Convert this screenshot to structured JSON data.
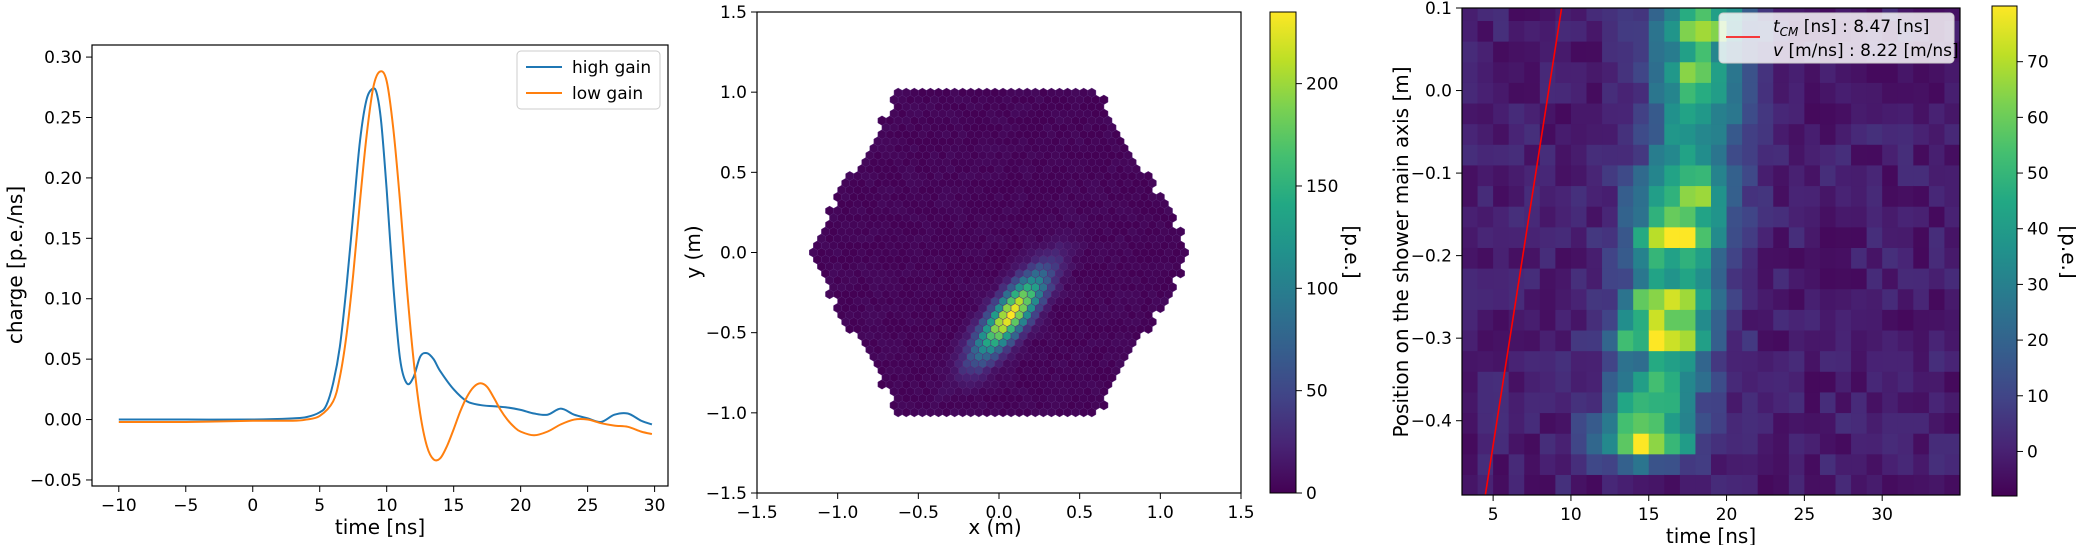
{
  "chart_data": [
    {
      "type": "line",
      "xlabel": "time [ns]",
      "ylabel": "charge [p.e./ns]",
      "xlim": [
        -12,
        31
      ],
      "ylim": [
        -0.055,
        0.31
      ],
      "xticks": [
        "−10",
        "−5",
        "0",
        "5",
        "10",
        "15",
        "20",
        "25",
        "30"
      ],
      "xtick_values": [
        -10,
        -5,
        0,
        5,
        10,
        15,
        20,
        25,
        30
      ],
      "yticks": [
        "−0.05",
        "0.00",
        "0.05",
        "0.10",
        "0.15",
        "0.20",
        "0.25",
        "0.30"
      ],
      "ytick_values": [
        -0.05,
        0,
        0.05,
        0.1,
        0.15,
        0.2,
        0.25,
        0.3
      ],
      "legend_position": "top-right",
      "grid": false,
      "series": [
        {
          "name": "high gain",
          "color": "#1f77b4",
          "x": [
            -10,
            -5,
            0,
            3,
            4,
            5,
            5.5,
            6,
            6.5,
            7,
            7.5,
            8,
            8.5,
            9,
            9.3,
            9.6,
            10,
            10.5,
            11,
            11.5,
            12,
            12.5,
            13,
            13.5,
            14,
            15,
            16,
            17,
            18,
            19,
            20,
            21,
            22,
            23,
            24,
            25,
            26,
            27,
            28,
            29,
            29.8
          ],
          "y": [
            0.0,
            0.0,
            0.0,
            0.001,
            0.002,
            0.006,
            0.012,
            0.03,
            0.06,
            0.11,
            0.17,
            0.23,
            0.265,
            0.274,
            0.268,
            0.245,
            0.19,
            0.11,
            0.05,
            0.03,
            0.035,
            0.052,
            0.055,
            0.05,
            0.04,
            0.025,
            0.015,
            0.012,
            0.011,
            0.01,
            0.008,
            0.005,
            0.004,
            0.009,
            0.004,
            0.001,
            -0.002,
            0.004,
            0.005,
            -0.001,
            -0.004
          ]
        },
        {
          "name": "low gain",
          "color": "#ff7f0e",
          "x": [
            -10,
            -5,
            0,
            3,
            4,
            5,
            6,
            6.5,
            7,
            7.5,
            8,
            8.5,
            9,
            9.5,
            10,
            10.5,
            11,
            11.5,
            12,
            12.5,
            13,
            13.5,
            14,
            14.5,
            15,
            15.5,
            16,
            16.5,
            17,
            17.5,
            18,
            18.5,
            19,
            19.5,
            20,
            21,
            22,
            23,
            24,
            25,
            26,
            27,
            28,
            29,
            29.8
          ],
          "y": [
            -0.002,
            -0.002,
            -0.001,
            -0.001,
            0.0,
            0.003,
            0.015,
            0.035,
            0.07,
            0.12,
            0.18,
            0.235,
            0.275,
            0.288,
            0.28,
            0.24,
            0.18,
            0.11,
            0.05,
            0.005,
            -0.022,
            -0.033,
            -0.032,
            -0.022,
            -0.008,
            0.007,
            0.019,
            0.027,
            0.03,
            0.027,
            0.018,
            0.008,
            0.0,
            -0.006,
            -0.01,
            -0.013,
            -0.01,
            -0.004,
            0.0,
            0.0,
            -0.003,
            -0.005,
            -0.006,
            -0.01,
            -0.012
          ]
        }
      ]
    },
    {
      "type": "heatmap",
      "xlabel": "x  (m)",
      "ylabel": "y  (m)",
      "xlim": [
        -1.5,
        1.5
      ],
      "ylim": [
        -1.5,
        1.5
      ],
      "xticks": [
        "−1.5",
        "−1.0",
        "−0.5",
        "0.0",
        "0.5",
        "1.0",
        "1.5"
      ],
      "xtick_values": [
        -1.5,
        -1.0,
        -0.5,
        0.0,
        0.5,
        1.0,
        1.5
      ],
      "yticks": [
        "−1.5",
        "−1.0",
        "−0.5",
        "0.0",
        "0.5",
        "1.0",
        "1.5"
      ],
      "ytick_values": [
        -1.5,
        -1.0,
        -0.5,
        0.0,
        0.5,
        1.0,
        1.5
      ],
      "colorbar_label": "[p.e.]",
      "colorbar_range": [
        0,
        235
      ],
      "colorbar_ticks": [
        "0",
        "50",
        "100",
        "150",
        "200"
      ],
      "colorbar_tick_values": [
        0,
        50,
        100,
        150,
        200
      ],
      "camera_shape": "hexagon",
      "camera_radius_m": 1.2,
      "pixel_size_m": 0.05,
      "ellipse": {
        "cx": 0.07,
        "cy": -0.39,
        "length": 0.55,
        "width": 0.07,
        "angle_deg": 52,
        "peak_pe": 230,
        "noise_pe": 8
      }
    },
    {
      "type": "heatmap",
      "xlabel": "time [ns]",
      "ylabel": "Position on the shower main axis [m]",
      "xlim": [
        3,
        35
      ],
      "ylim": [
        -0.49,
        0.1
      ],
      "xticks": [
        "5",
        "10",
        "15",
        "20",
        "25",
        "30"
      ],
      "xtick_values": [
        5,
        10,
        15,
        20,
        25,
        30
      ],
      "yticks": [
        "−0.4",
        "−0.3",
        "−0.2",
        "−0.1",
        "0.0",
        "0.1"
      ],
      "ytick_values": [
        -0.4,
        -0.3,
        -0.2,
        -0.1,
        0.0,
        0.1
      ],
      "colorbar_label": "[p.e.]",
      "colorbar_range": [
        -8,
        80
      ],
      "colorbar_ticks": [
        "0",
        "10",
        "20",
        "30",
        "40",
        "50",
        "60",
        "70"
      ],
      "colorbar_tick_values": [
        0,
        10,
        20,
        30,
        40,
        50,
        60,
        70
      ],
      "time_bin_ns": 1,
      "position_bin_m": 0.025,
      "fit_line": {
        "color": "#ff0000",
        "x": [
          4.5,
          9.4
        ],
        "y": [
          -0.49,
          0.1
        ]
      },
      "legend_position": "top-right",
      "legend": {
        "t_sym": "t",
        "t_sub": "CM",
        "t_text": " [ns] : 8.47 [ns]",
        "v_sym": "v",
        "v_text": " [m/ns] : 8.22 [m/ns]"
      },
      "signal": {
        "bands": [
          {
            "y": -0.43,
            "t0": 14.5,
            "amp": 58
          },
          {
            "y": -0.405,
            "t0": 15.0,
            "amp": 52
          },
          {
            "y": -0.37,
            "t0": 15.5,
            "amp": 40
          },
          {
            "y": -0.34,
            "t0": 16.0,
            "amp": 36
          },
          {
            "y": -0.3,
            "t0": 15.8,
            "amp": 75
          },
          {
            "y": -0.27,
            "t0": 16.3,
            "amp": 38
          },
          {
            "y": -0.245,
            "t0": 16.5,
            "amp": 62
          },
          {
            "y": -0.2,
            "t0": 16.8,
            "amp": 44
          },
          {
            "y": -0.17,
            "t0": 17.0,
            "amp": 78
          },
          {
            "y": -0.13,
            "t0": 17.3,
            "amp": 55
          },
          {
            "y": -0.1,
            "t0": 17.5,
            "amp": 42
          },
          {
            "y": -0.06,
            "t0": 17.8,
            "amp": 40
          },
          {
            "y": -0.02,
            "t0": 18.0,
            "amp": 46
          },
          {
            "y": 0.02,
            "t0": 18.2,
            "amp": 52
          },
          {
            "y": 0.06,
            "t0": 18.3,
            "amp": 50
          },
          {
            "y": 0.09,
            "t0": 18.5,
            "amp": 55
          }
        ]
      }
    }
  ]
}
